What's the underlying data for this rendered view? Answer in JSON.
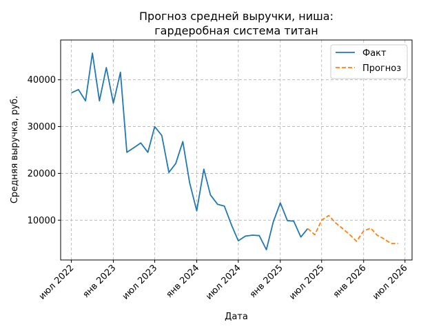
{
  "chart_data": {
    "type": "line",
    "title": [
      "Прогноз средней выручки, ниша:",
      "гардеробная система титан"
    ],
    "xlabel": "Дата",
    "ylabel": "Средняя выручка, руб.",
    "ylim": [
      1500,
      48500
    ],
    "yticks": [
      10000,
      20000,
      30000,
      40000
    ],
    "xlim": [
      "2022-05-15",
      "2026-08-01"
    ],
    "xticks": [
      {
        "date": "2022-07-01",
        "label": "июл 2022"
      },
      {
        "date": "2023-01-01",
        "label": "янв 2023"
      },
      {
        "date": "2023-07-01",
        "label": "июл 2023"
      },
      {
        "date": "2024-01-01",
        "label": "янв 2024"
      },
      {
        "date": "2024-07-01",
        "label": "июл 2024"
      },
      {
        "date": "2025-01-01",
        "label": "янв 2025"
      },
      {
        "date": "2025-07-01",
        "label": "июл 2025"
      },
      {
        "date": "2026-01-01",
        "label": "янв 2026"
      },
      {
        "date": "2026-07-01",
        "label": "июл 2026"
      }
    ],
    "grid": true,
    "legend_position": "top-right",
    "series": [
      {
        "name": "Факт",
        "color": "#1f77b4",
        "style": "solid",
        "x": [
          "2022-07-01",
          "2022-08-01",
          "2022-09-01",
          "2022-10-01",
          "2022-11-01",
          "2022-12-01",
          "2023-01-01",
          "2023-02-01",
          "2023-03-01",
          "2023-04-01",
          "2023-05-01",
          "2023-06-01",
          "2023-07-01",
          "2023-08-01",
          "2023-09-01",
          "2023-10-01",
          "2023-11-01",
          "2023-12-01",
          "2024-01-01",
          "2024-02-01",
          "2024-03-01",
          "2024-04-01",
          "2024-05-01",
          "2024-06-01",
          "2024-07-01",
          "2024-08-01",
          "2024-09-01",
          "2024-10-01",
          "2024-11-01",
          "2024-12-01",
          "2025-01-01",
          "2025-02-01",
          "2025-03-01",
          "2025-04-01",
          "2025-05-01"
        ],
        "values": [
          37200,
          37900,
          35500,
          45700,
          35500,
          42600,
          35000,
          41600,
          24500,
          25500,
          26500,
          24500,
          30000,
          28100,
          20200,
          22100,
          26800,
          18000,
          12000,
          20900,
          15400,
          13400,
          13000,
          9000,
          5600,
          6600,
          6800,
          6700,
          3700,
          9600,
          13700,
          9900,
          9800,
          6400,
          8200
        ]
      },
      {
        "name": "Прогноз",
        "color": "#ff7f0e",
        "style": "dashed",
        "x": [
          "2025-05-01",
          "2025-06-01",
          "2025-07-01",
          "2025-08-01",
          "2025-09-01",
          "2025-10-01",
          "2025-11-01",
          "2025-12-01",
          "2026-01-01",
          "2026-02-01",
          "2026-03-01",
          "2026-04-01",
          "2026-05-01",
          "2026-06-01"
        ],
        "values": [
          8200,
          6900,
          10000,
          11000,
          9400,
          8200,
          6900,
          5500,
          7700,
          8300,
          6800,
          6000,
          5000,
          5000
        ]
      }
    ]
  }
}
